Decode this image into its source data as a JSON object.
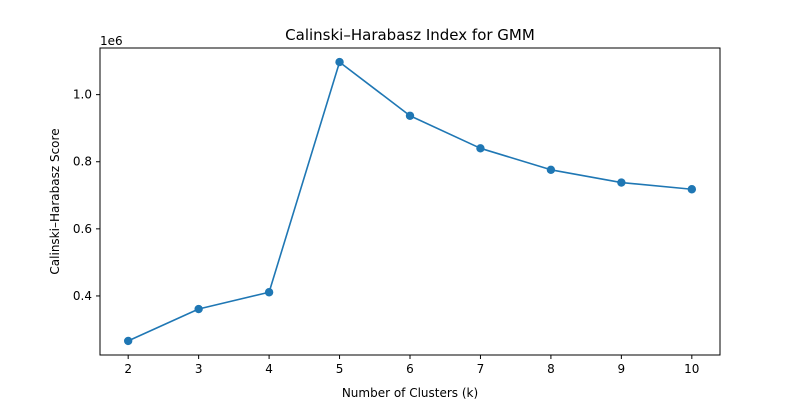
{
  "chart_data": {
    "type": "line",
    "title": "Calinski–Harabasz Index for GMM",
    "xlabel": "Number of Clusters (k)",
    "ylabel": "Calinski–Harabasz Score",
    "y_offset_label": "1e6",
    "x": [
      2,
      3,
      4,
      5,
      6,
      7,
      8,
      9,
      10
    ],
    "series": [
      {
        "values": [
          266000,
          361000,
          411000,
          1097000,
          937000,
          840000,
          776000,
          738000,
          718000
        ]
      }
    ],
    "xlim": [
      1.6,
      10.4
    ],
    "ylim": [
      224000,
      1139000
    ],
    "x_ticks": [
      2,
      3,
      4,
      5,
      6,
      7,
      8,
      9,
      10
    ],
    "x_tick_labels": [
      "2",
      "3",
      "4",
      "5",
      "6",
      "7",
      "8",
      "9",
      "10"
    ],
    "y_ticks": [
      400000,
      600000,
      800000,
      1000000
    ],
    "y_tick_labels": [
      "0.4",
      "0.6",
      "0.8",
      "1.0"
    ],
    "grid": false,
    "line_color": "#1f77b4",
    "marker": "circle"
  }
}
